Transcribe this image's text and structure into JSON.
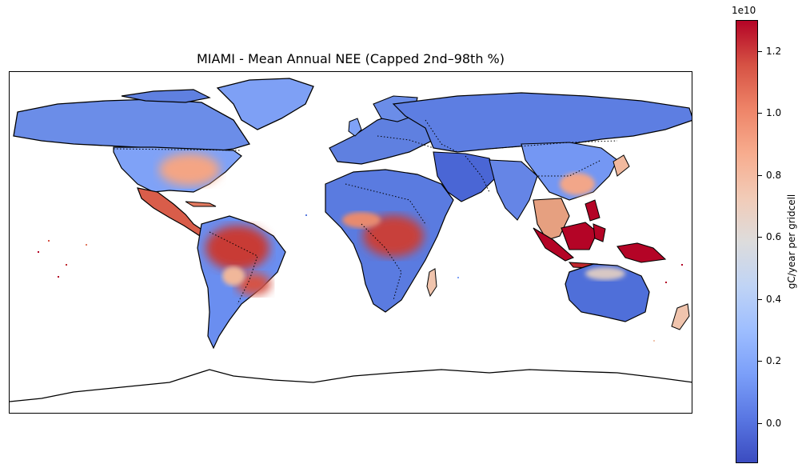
{
  "map": {
    "title": "MIAMI - Mean Annual NEE (Capped 2nd–98th %)",
    "projection": "PlateCarree",
    "features": [
      "coastlines",
      "country borders (dotted)"
    ]
  },
  "colorbar": {
    "label": "gC/year per gridcell",
    "offset_text": "1e10",
    "colormap": "coolwarm",
    "range": [
      -0.13,
      1.3
    ],
    "ticks": [
      "0.0",
      "0.2",
      "0.4",
      "0.6",
      "0.8",
      "1.0",
      "1.2"
    ],
    "tick_values": [
      0.0,
      0.2,
      0.4,
      0.6,
      0.8,
      1.0,
      1.2
    ]
  },
  "colors": {
    "low": "#3b4cc0",
    "mid": "#dddcdc",
    "high": "#b40426"
  },
  "regions": [
    {
      "name": "Canada",
      "level": "low"
    },
    {
      "name": "Greenland",
      "level": "low"
    },
    {
      "name": "Eastern USA",
      "level": "medium-high"
    },
    {
      "name": "Western USA",
      "level": "low"
    },
    {
      "name": "Mexico / Central America",
      "level": "high"
    },
    {
      "name": "Amazon",
      "level": "high"
    },
    {
      "name": "Southeast Brazil",
      "level": "high"
    },
    {
      "name": "Patagonia",
      "level": "low"
    },
    {
      "name": "Europe",
      "level": "low"
    },
    {
      "name": "Sahara / Middle East",
      "level": "low"
    },
    {
      "name": "Central Africa",
      "level": "high"
    },
    {
      "name": "Southern Africa",
      "level": "low"
    },
    {
      "name": "Madagascar",
      "level": "medium"
    },
    {
      "name": "Russia / Siberia",
      "level": "low"
    },
    {
      "name": "South Asia",
      "level": "low"
    },
    {
      "name": "Southeast China",
      "level": "medium-high"
    },
    {
      "name": "Maritime Southeast Asia",
      "level": "very-high"
    },
    {
      "name": "Papua New Guinea",
      "level": "very-high"
    },
    {
      "name": "Australia",
      "level": "low"
    },
    {
      "name": "New Zealand",
      "level": "medium"
    },
    {
      "name": "Antarctica",
      "level": "none"
    }
  ]
}
